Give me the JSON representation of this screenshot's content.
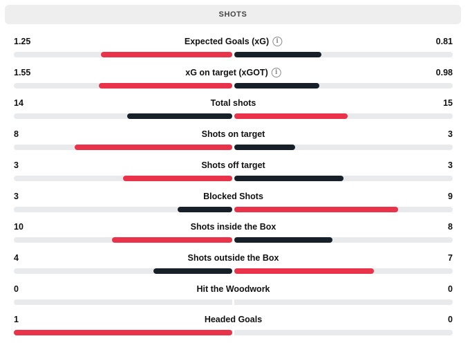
{
  "header": {
    "title": "SHOTS"
  },
  "colors": {
    "leader": "#e8334a",
    "trailer": "#172028",
    "track": "#e9eaeb"
  },
  "stats": [
    {
      "label": "Expected Goals (xG)",
      "home": "1.25",
      "away": "0.81",
      "home_frac": 0.6,
      "away_frac": 0.4,
      "info": "info-icon"
    },
    {
      "label": "xG on target (xGOT)",
      "home": "1.55",
      "away": "0.98",
      "home_frac": 0.61,
      "away_frac": 0.39,
      "info": "info-icon"
    },
    {
      "label": "Total shots",
      "home": "14",
      "away": "15",
      "home_frac": 0.48,
      "away_frac": 0.52
    },
    {
      "label": "Shots on target",
      "home": "8",
      "away": "3",
      "home_frac": 0.72,
      "away_frac": 0.28
    },
    {
      "label": "Shots off target",
      "home": "3",
      "away": "3",
      "home_frac": 0.5,
      "away_frac": 0.5
    },
    {
      "label": "Blocked Shots",
      "home": "3",
      "away": "9",
      "home_frac": 0.25,
      "away_frac": 0.75
    },
    {
      "label": "Shots inside the Box",
      "home": "10",
      "away": "8",
      "home_frac": 0.55,
      "away_frac": 0.45
    },
    {
      "label": "Shots outside the Box",
      "home": "4",
      "away": "7",
      "home_frac": 0.36,
      "away_frac": 0.64
    },
    {
      "label": "Hit the Woodwork",
      "home": "0",
      "away": "0",
      "home_frac": 0,
      "away_frac": 0
    },
    {
      "label": "Headed Goals",
      "home": "1",
      "away": "0",
      "home_frac": 1.0,
      "away_frac": 0
    }
  ]
}
